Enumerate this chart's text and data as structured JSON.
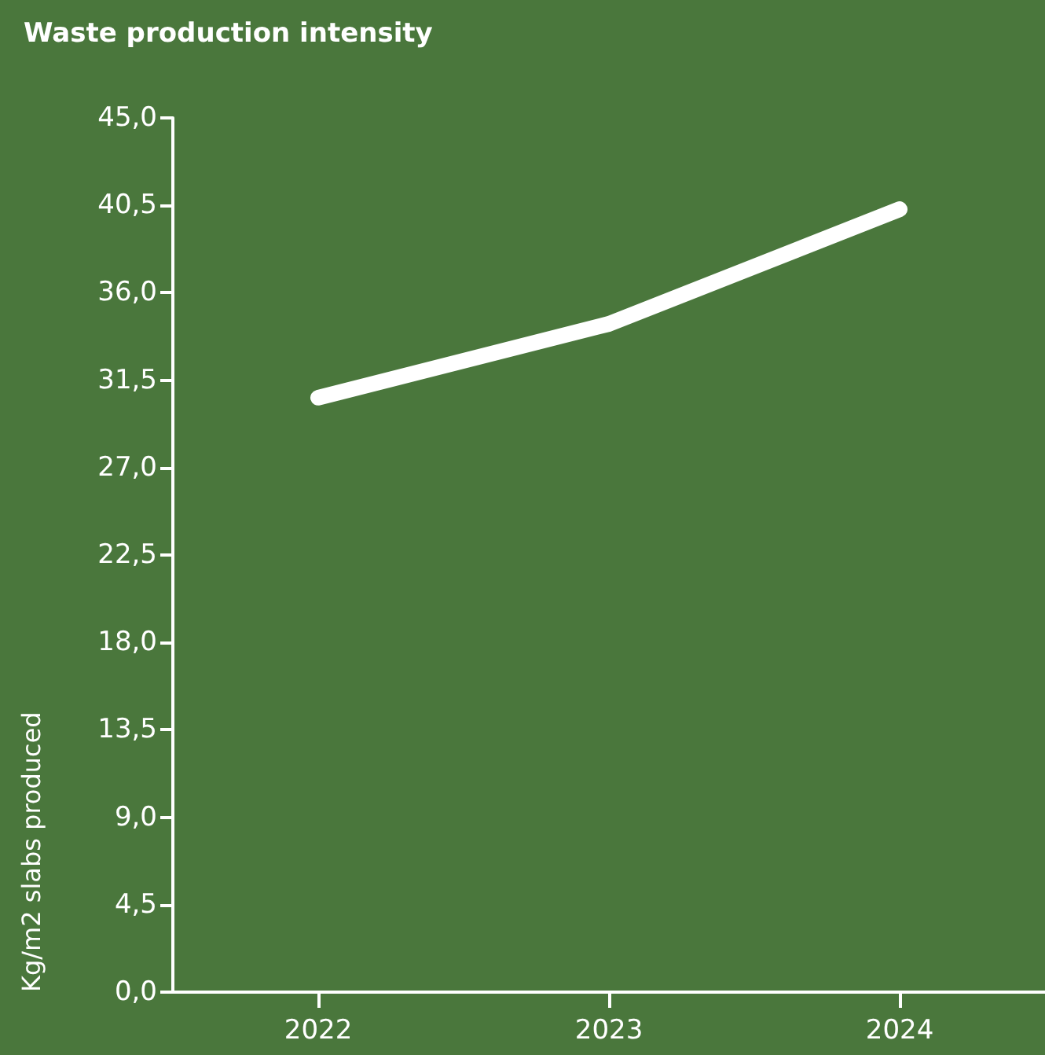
{
  "chart_data": {
    "type": "line",
    "title": "Waste production intensity",
    "ylabel": "Kg/m2 slabs produced",
    "categories": [
      "2022",
      "2023",
      "2024"
    ],
    "series": [
      {
        "color": "#ffffff",
        "values": [
          30.6,
          34.4,
          40.3
        ]
      }
    ],
    "ylim": [
      0,
      45
    ],
    "yticks": [
      {
        "value": 0,
        "label": "0,0"
      },
      {
        "value": 4.5,
        "label": "4,5"
      },
      {
        "value": 9,
        "label": "9,0"
      },
      {
        "value": 13.5,
        "label": "13,5"
      },
      {
        "value": 18,
        "label": "18,0"
      },
      {
        "value": 22.5,
        "label": "22,5"
      },
      {
        "value": 27,
        "label": "27,0"
      },
      {
        "value": 31.5,
        "label": "31,5"
      },
      {
        "value": 36,
        "label": "36,0"
      },
      {
        "value": 40.5,
        "label": "40,5"
      },
      {
        "value": 45,
        "label": "45,0"
      }
    ],
    "grid": false,
    "line_style": "solid"
  }
}
